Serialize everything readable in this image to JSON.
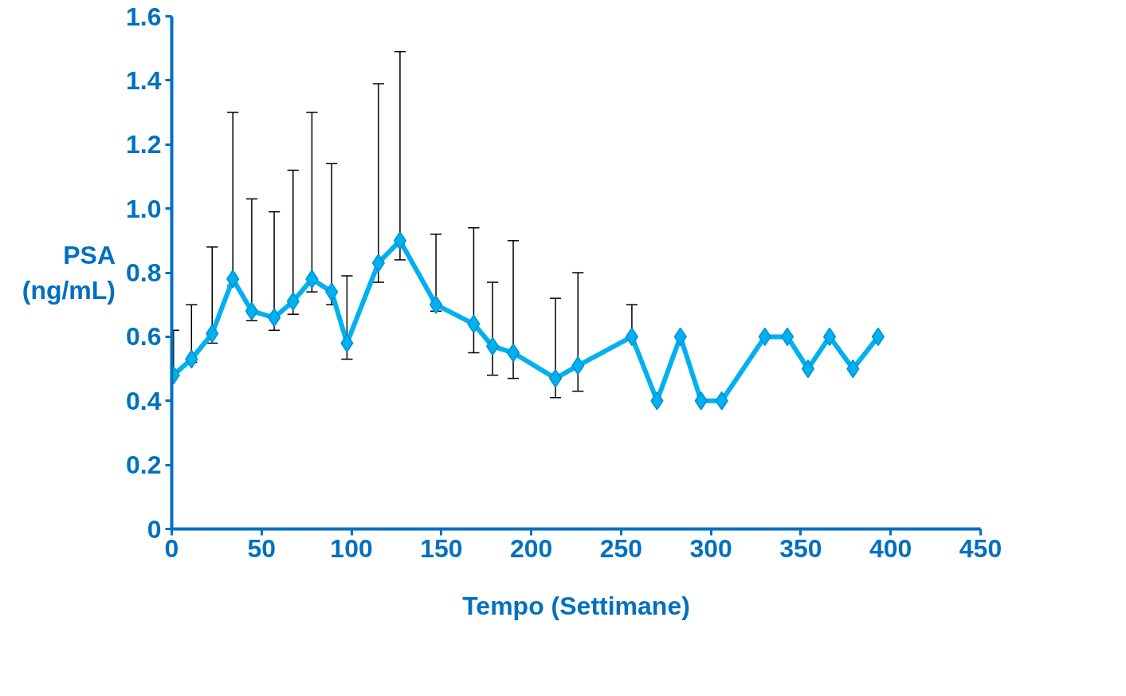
{
  "chart_data": {
    "type": "line",
    "xlabel": "Tempo (Settimane)",
    "ylabel": "PSA\n(ng/mL)",
    "x": [
      1,
      11,
      22.5,
      34,
      44.5,
      57,
      67.5,
      78,
      89,
      97.5,
      115,
      127,
      147,
      168,
      178.5,
      190,
      213.5,
      226,
      256,
      270,
      283,
      294.5,
      306,
      330,
      342.5,
      354,
      366,
      379,
      393
    ],
    "series": [
      {
        "color": "#00b0f0",
        "values": [
          0.48,
          0.53,
          0.61,
          0.78,
          0.68,
          0.66,
          0.71,
          0.78,
          0.74,
          0.58,
          0.83,
          0.9,
          0.7,
          0.64,
          0.57,
          0.55,
          0.47,
          0.51,
          0.6,
          0.4,
          0.6,
          0.4,
          0.4,
          0.6,
          0.6,
          0.5,
          0.6,
          0.5,
          0.6
        ],
        "errors": [
          [
            0.48,
            0.62
          ],
          [
            0.52,
            0.7
          ],
          [
            0.58,
            0.88
          ],
          [
            0.76,
            1.3
          ],
          [
            0.65,
            1.03
          ],
          [
            0.62,
            0.99
          ],
          [
            0.67,
            1.12
          ],
          [
            0.74,
            1.3
          ],
          [
            0.7,
            1.14
          ],
          [
            0.53,
            0.79
          ],
          [
            0.77,
            1.39
          ],
          [
            0.84,
            1.49
          ],
          [
            0.68,
            0.92
          ],
          [
            0.55,
            0.94
          ],
          [
            0.48,
            0.77
          ],
          [
            0.47,
            0.9
          ],
          [
            0.41,
            0.72
          ],
          [
            0.43,
            0.8
          ],
          [
            0.6,
            0.7
          ],
          null,
          null,
          null,
          null,
          null,
          null,
          null,
          null,
          null,
          null
        ]
      }
    ],
    "marker": "diamond",
    "line_style": "solid",
    "grid": false,
    "xlim": [
      0,
      450
    ],
    "xticks": [
      0,
      50,
      100,
      150,
      200,
      250,
      300,
      350,
      400,
      450
    ],
    "ylim": [
      0,
      1.6
    ],
    "yticks": [
      0,
      0.2,
      0.4,
      0.6,
      0.8,
      {
        "value": 1.0,
        "label": "1.0"
      },
      1.2,
      1.4,
      1.6
    ]
  }
}
